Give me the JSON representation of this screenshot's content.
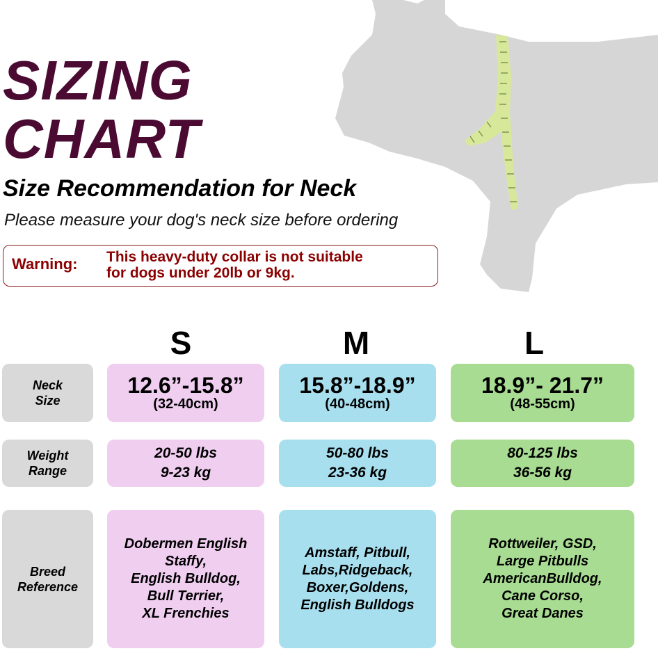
{
  "title": {
    "line1": "SIZING",
    "line2": "CHART"
  },
  "subtitle": "Size Recommendation for Neck",
  "instruction": "Please measure your dog's neck size before ordering",
  "warning": {
    "label": "Warning:",
    "line1": "This heavy-duty collar is not suitable",
    "line2": "for dogs under 20lb or 9kg."
  },
  "colors": {
    "title": "#4a0a32",
    "warning": "#8b0000",
    "small": "#f0cef0",
    "medium": "#a7dfee",
    "large": "#a8dc92",
    "label_bg": "#d9d9d9",
    "silhouette": "#d6d6d6",
    "tape": "#d8e89a"
  },
  "illustration": {
    "icon": "dog-silhouette-with-measuring-tape-icon"
  },
  "row_labels": {
    "neck": [
      "Neck",
      "Size"
    ],
    "weight": [
      "Weight",
      "Range"
    ],
    "breed": [
      "Breed",
      "Reference"
    ]
  },
  "sizes": [
    {
      "letter": "S",
      "neck_in": "12.6”-15.8”",
      "neck_cm": "(32-40cm)",
      "weight_lbs": "20-50 lbs",
      "weight_kg": "9-23 kg",
      "breeds": [
        "Dobermen English",
        "Staffy,",
        "English Bulldog,",
        "Bull Terrier,",
        "XL Frenchies"
      ]
    },
    {
      "letter": "M",
      "neck_in": "15.8”-18.9”",
      "neck_cm": "(40-48cm)",
      "weight_lbs": "50-80 lbs",
      "weight_kg": "23-36 kg",
      "breeds": [
        "Amstaff, Pitbull,",
        "Labs,Ridgeback,",
        "Boxer,Goldens,",
        "English Bulldogs"
      ]
    },
    {
      "letter": "L",
      "neck_in": "18.9”- 21.7”",
      "neck_cm": "(48-55cm)",
      "weight_lbs": "80-125 lbs",
      "weight_kg": "36-56 kg",
      "breeds": [
        "Rottweiler, GSD,",
        "Large Pitbulls",
        "AmericanBulldog,",
        "Cane Corso,",
        "Great Danes"
      ]
    }
  ]
}
